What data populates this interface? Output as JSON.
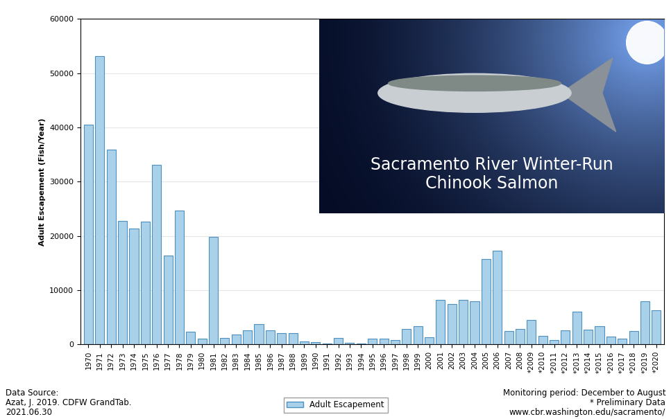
{
  "chart_data": {
    "type": "bar",
    "title": "Sacramento River Winter-Run\nChinook Salmon",
    "y_label": "Adult Escapement (Fish/Year)",
    "categories": [
      "1970",
      "1971",
      "1972",
      "1973",
      "1974",
      "1975",
      "1976",
      "1977",
      "1978",
      "1979",
      "1980",
      "1981",
      "1982",
      "1983",
      "1984",
      "1985",
      "1986",
      "1987",
      "1988",
      "1989",
      "1990",
      "1991",
      "1992",
      "1993",
      "1994",
      "1995",
      "1996",
      "1997",
      "1998",
      "1999",
      "2000",
      "2001",
      "2002",
      "2003",
      "2004",
      "2005",
      "2006",
      "2007",
      "2008",
      "*2009",
      "*2010",
      "*2011",
      "*2012",
      "*2013",
      "*2014",
      "*2015",
      "*2016",
      "*2017",
      "*2018",
      "*2019",
      "*2020"
    ],
    "series": [
      {
        "name": "Adult Escapement",
        "color": "#a9d1ea",
        "values": [
          40500,
          53100,
          35900,
          22700,
          21300,
          22600,
          33100,
          16400,
          24700,
          2300,
          1100,
          19800,
          1200,
          1800,
          2600,
          3800,
          2600,
          2100,
          2100,
          550,
          450,
          200,
          1200,
          350,
          150,
          1100,
          1000,
          850,
          2800,
          3300,
          1300,
          8200,
          7400,
          8200,
          7900,
          15800,
          17300,
          2500,
          2800,
          4500,
          1600,
          800,
          2600,
          6100,
          2700,
          3400,
          1400,
          1000,
          2500,
          7900,
          6300
        ]
      }
    ],
    "ylim": [
      0,
      60000
    ],
    "yticks": [
      0,
      10000,
      20000,
      30000,
      40000,
      50000,
      60000
    ],
    "grid": true,
    "legend": "lower center",
    "annotations": [
      "Data Source:\nAzat, J. 2019. CDFW GrandTab.\n2021.06.30",
      "Monitoring period: December to August\n* Preliminary Data\nwww.cbr.washington.edu/sacramento/"
    ]
  }
}
